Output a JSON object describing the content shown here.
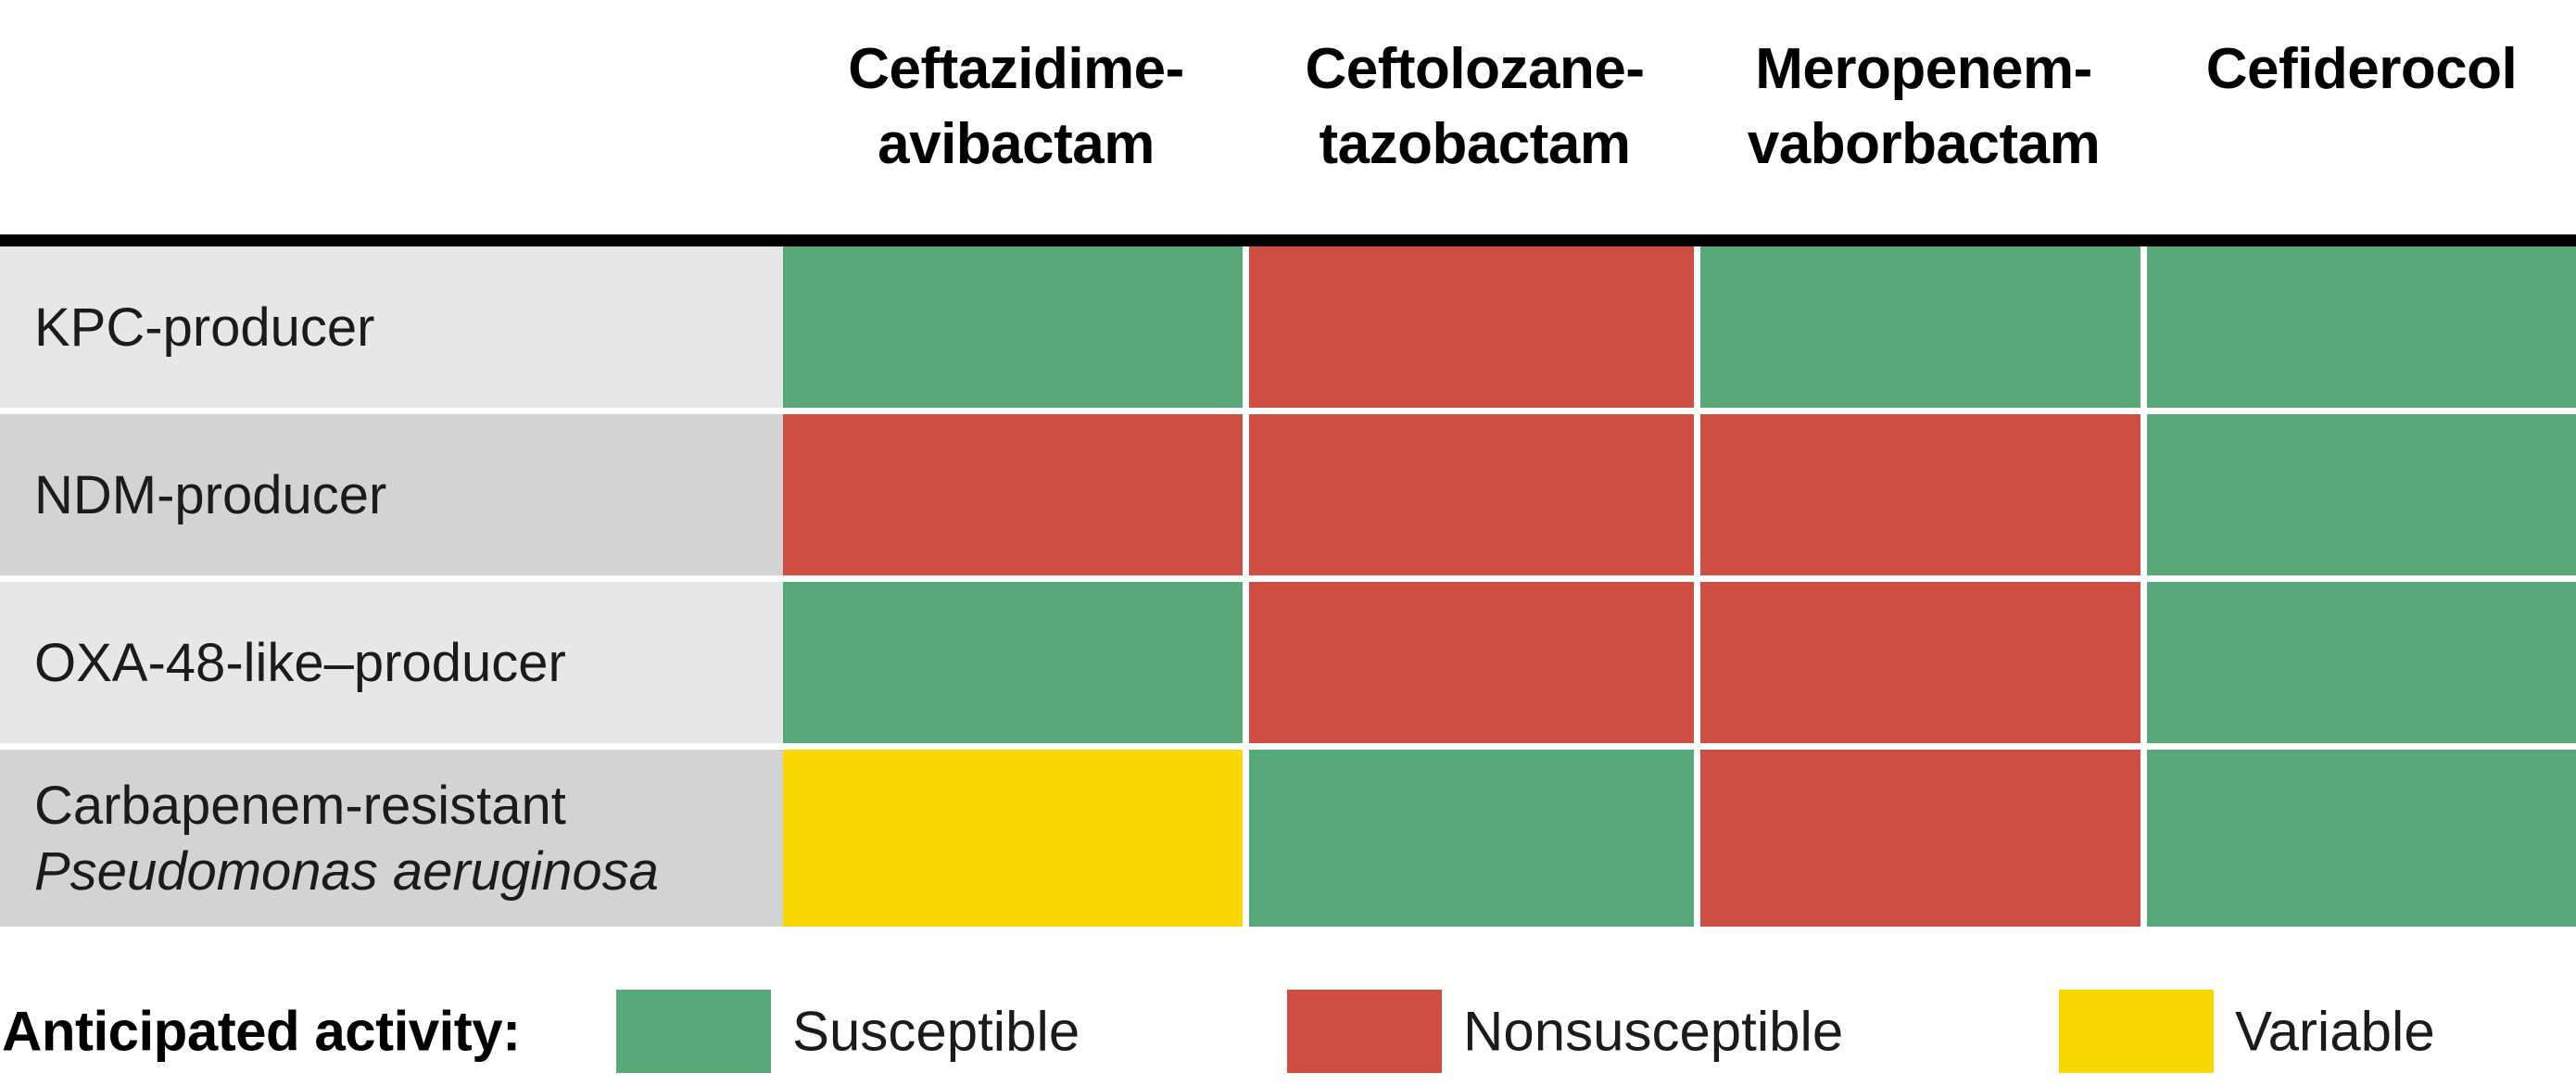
{
  "colors": {
    "susceptible": "#57A97A",
    "nonsusceptible": "#CE4E44",
    "variable": "#F8D703",
    "row-light": "#E6E7E8",
    "row-dark": "#D2D3D5",
    "rule": "#000000",
    "text": "#1B1B1B"
  },
  "table": {
    "columns": [
      {
        "line1": "Ceftazidime-",
        "line2": "avibactam"
      },
      {
        "line1": "Ceftolozane-",
        "line2": "tazobactam"
      },
      {
        "line1": "Meropenem-",
        "line2": "vaborbactam"
      },
      {
        "line1": "Cefiderocol",
        "line2": ""
      }
    ],
    "rows": [
      {
        "label_line1": "KPC-producer",
        "label_line2_italic": "",
        "shade": "light",
        "cells": [
          "susceptible",
          "nonsusceptible",
          "susceptible",
          "susceptible"
        ]
      },
      {
        "label_line1": "NDM-producer",
        "label_line2_italic": "",
        "shade": "dark",
        "cells": [
          "nonsusceptible",
          "nonsusceptible",
          "nonsusceptible",
          "susceptible"
        ]
      },
      {
        "label_line1": "OXA-48-like–producer",
        "label_line2_italic": "",
        "shade": "light",
        "cells": [
          "susceptible",
          "nonsusceptible",
          "nonsusceptible",
          "susceptible"
        ]
      },
      {
        "label_line1": "Carbapenem-resistant",
        "label_line2_italic": "Pseudomonas aeruginosa",
        "shade": "dark",
        "cells": [
          "variable",
          "susceptible",
          "nonsusceptible",
          "susceptible"
        ]
      }
    ]
  },
  "legend": {
    "title": "Anticipated activity:",
    "items": [
      {
        "label": "Susceptible",
        "status": "susceptible"
      },
      {
        "label": "Nonsusceptible",
        "status": "nonsusceptible"
      },
      {
        "label": "Variable",
        "status": "variable"
      }
    ]
  },
  "chart_data": {
    "type": "heatmap",
    "title": "",
    "x_categories": [
      "Ceftazidime-avibactam",
      "Ceftolozane-tazobactam",
      "Meropenem-vaborbactam",
      "Cefiderocol"
    ],
    "y_categories": [
      "KPC-producer",
      "NDM-producer",
      "OXA-48-like–producer",
      "Carbapenem-resistant Pseudomonas aeruginosa"
    ],
    "values": [
      [
        "Susceptible",
        "Nonsusceptible",
        "Susceptible",
        "Susceptible"
      ],
      [
        "Nonsusceptible",
        "Nonsusceptible",
        "Nonsusceptible",
        "Susceptible"
      ],
      [
        "Susceptible",
        "Nonsusceptible",
        "Nonsusceptible",
        "Susceptible"
      ],
      [
        "Variable",
        "Susceptible",
        "Nonsusceptible",
        "Susceptible"
      ]
    ],
    "legend_title": "Anticipated activity:",
    "legend": [
      {
        "label": "Susceptible",
        "color": "#57A97A"
      },
      {
        "label": "Nonsusceptible",
        "color": "#CE4E44"
      },
      {
        "label": "Variable",
        "color": "#F8D703"
      }
    ],
    "layout_hints": {
      "grid": "white 7px gaps between cells",
      "row_label_shading": "alternating light/dark gray",
      "header_rule": "heavy black line under column headers"
    }
  }
}
